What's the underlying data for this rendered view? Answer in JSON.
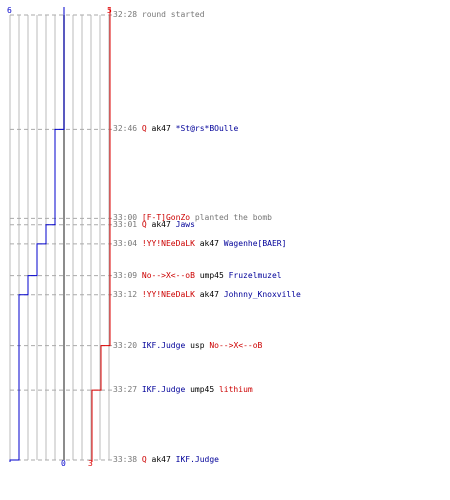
{
  "colors": {
    "team_blue": "#0000cc",
    "team_red": "#dd0000",
    "grid": "#bbbbbb",
    "timestamp": "#777777"
  },
  "counts": {
    "blue_start": "6",
    "red_start": "5",
    "blue_end": "0",
    "red_end": "3"
  },
  "events": [
    {
      "time": "32:28",
      "parts": [
        {
          "t": "round started",
          "c": "msg"
        }
      ],
      "blue": 6,
      "red": 5
    },
    {
      "time": "32:46",
      "parts": [
        {
          "t": "Q",
          "c": "red"
        },
        {
          "t": " ak47 ",
          "c": "black"
        },
        {
          "t": "*St@rs*BOulle",
          "c": "blue"
        }
      ],
      "blue": 5,
      "red": 5
    },
    {
      "time": "33:00",
      "parts": [
        {
          "t": "[F-T]GonZo",
          "c": "red"
        },
        {
          "t": " planted the bomb",
          "c": "msg"
        }
      ],
      "blue": 5,
      "red": 5
    },
    {
      "time": "33:01",
      "parts": [
        {
          "t": "Q",
          "c": "red"
        },
        {
          "t": " ak47 ",
          "c": "black"
        },
        {
          "t": "Jaws",
          "c": "blue"
        }
      ],
      "blue": 4,
      "red": 5
    },
    {
      "time": "33:04",
      "parts": [
        {
          "t": "!YY!NEeDaLK",
          "c": "red"
        },
        {
          "t": " ak47 ",
          "c": "black"
        },
        {
          "t": "Wagenhe[BAER]",
          "c": "blue"
        }
      ],
      "blue": 3,
      "red": 5
    },
    {
      "time": "33:09",
      "parts": [
        {
          "t": "No-->X<--oB",
          "c": "red"
        },
        {
          "t": " ump45 ",
          "c": "black"
        },
        {
          "t": "Fruzelmuzel",
          "c": "blue"
        }
      ],
      "blue": 2,
      "red": 5
    },
    {
      "time": "33:12",
      "parts": [
        {
          "t": "!YY!NEeDaLK",
          "c": "red"
        },
        {
          "t": " ak47 ",
          "c": "black"
        },
        {
          "t": "Johnny_Knoxville",
          "c": "blue"
        }
      ],
      "blue": 1,
      "red": 5
    },
    {
      "time": "33:20",
      "parts": [
        {
          "t": "IKF.Judge",
          "c": "blue"
        },
        {
          "t": " usp ",
          "c": "black"
        },
        {
          "t": "No-->X<--oB",
          "c": "red"
        }
      ],
      "blue": 1,
      "red": 4
    },
    {
      "time": "33:27",
      "parts": [
        {
          "t": "IKF.Judge",
          "c": "blue"
        },
        {
          "t": " ump45 ",
          "c": "black"
        },
        {
          "t": "lithium",
          "c": "red"
        }
      ],
      "blue": 1,
      "red": 3
    },
    {
      "time": "33:38",
      "parts": [
        {
          "t": "Q",
          "c": "red"
        },
        {
          "t": " ak47 ",
          "c": "black"
        },
        {
          "t": "IKF.Judge",
          "c": "blue"
        }
      ],
      "blue": 0,
      "red": 3
    }
  ]
}
